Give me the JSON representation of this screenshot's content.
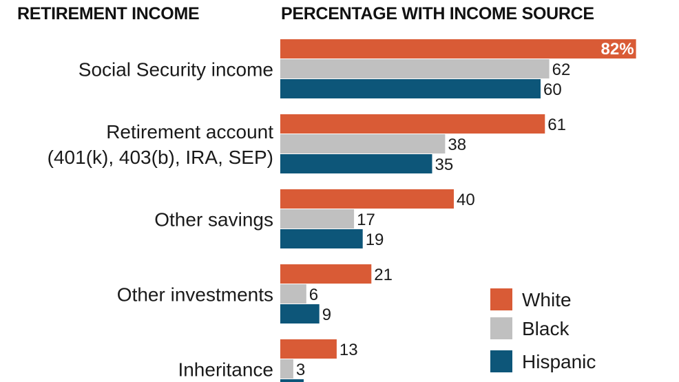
{
  "header": {
    "left_title": "RETIREMENT INCOME",
    "right_title": "PERCENTAGE WITH INCOME SOURCE"
  },
  "colors": {
    "White": "#d95b36",
    "Black": "#c0c0c0",
    "Hispanic": "#0d5679"
  },
  "chart_data": {
    "type": "bar",
    "orientation": "horizontal",
    "title": "PERCENTAGE WITH INCOME SOURCE",
    "categories": [
      [
        "Social Security income"
      ],
      [
        "Retirement account",
        "(401(k), 403(b), IRA, SEP)"
      ],
      [
        "Other savings"
      ],
      [
        "Other investments"
      ],
      [
        "Inheritance"
      ]
    ],
    "series": [
      {
        "name": "White",
        "values": [
          82,
          61,
          40,
          21,
          13
        ]
      },
      {
        "name": "Black",
        "values": [
          62,
          38,
          17,
          6,
          3
        ]
      },
      {
        "name": "Hispanic",
        "values": [
          60,
          35,
          19,
          9,
          null
        ]
      }
    ],
    "first_value_suffix": "%",
    "legend": [
      "White",
      "Black",
      "Hispanic"
    ],
    "legend_position": "bottom-right",
    "grid": false
  }
}
